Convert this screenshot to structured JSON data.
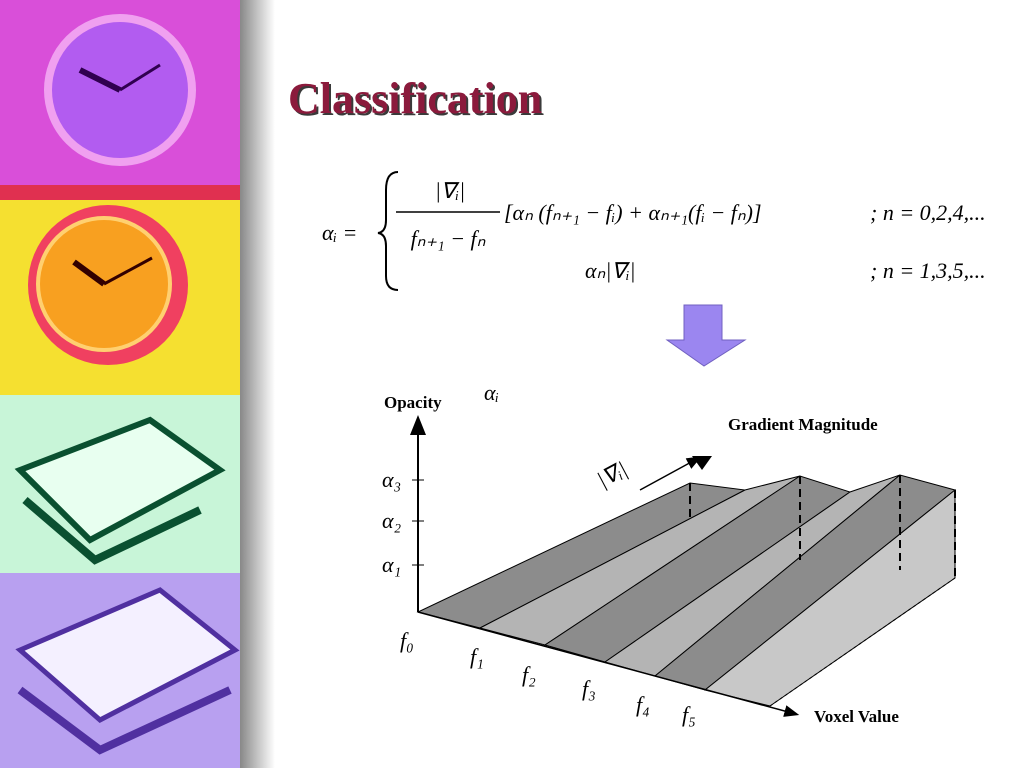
{
  "title": "Classification",
  "formula": {
    "lhs": "αᵢ =",
    "numerator": "|∇ᵢ|",
    "denominator": "fₙ₊₁ − fₙ",
    "bracket": "[αₙ (fₙ₊₁ − fᵢ) + αₙ₊₁(fᵢ − fₙ)]",
    "case1_condition": "; n = 0,2,4,...",
    "case2": "αₙ|∇ᵢ|",
    "case2_condition": "; n = 1,3,5,..."
  },
  "diagram": {
    "y_axis_label": "Opacity",
    "y_axis_symbol": "αᵢ",
    "depth_axis_label": "Gradient Magnitude",
    "depth_axis_symbol": "|∇ᵢ|",
    "x_axis_label": "Voxel Value",
    "y_ticks": [
      "α₃",
      "α₂",
      "α₁"
    ],
    "x_ticks": [
      "f₀",
      "f₁",
      "f₂",
      "f₃",
      "f₄",
      "f₅"
    ]
  }
}
